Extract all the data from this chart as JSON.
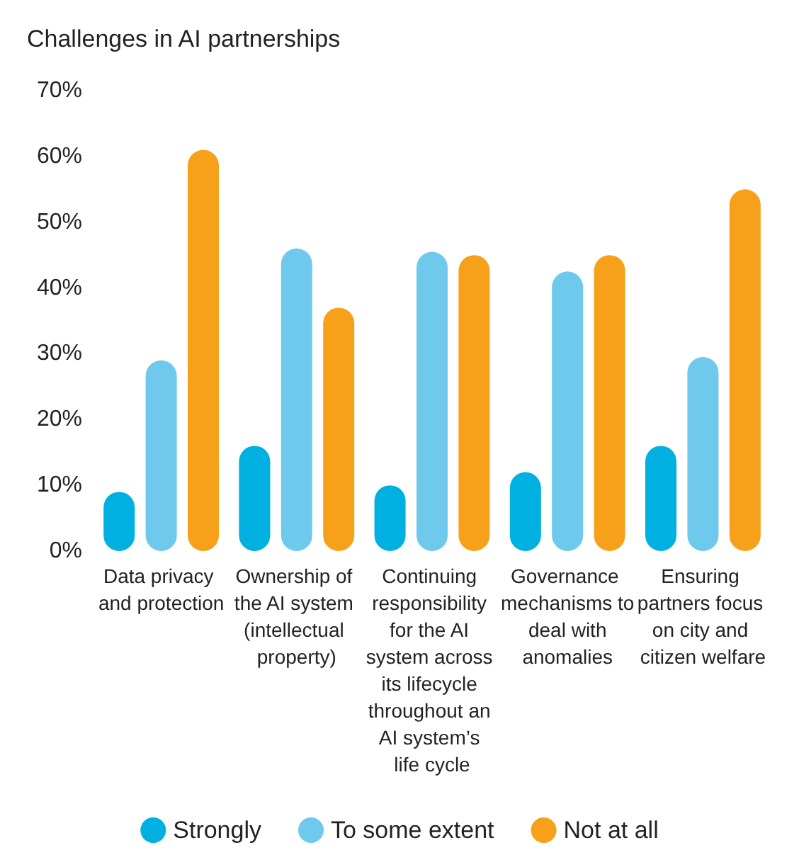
{
  "chart_data": {
    "type": "bar",
    "title": "Challenges in AI partnerships",
    "categories": [
      "Data privacy and protection",
      "Ownership of the AI system (intellectual property)",
      "Continuing responsibility for the AI system across its lifecycle throughout an AI system’s life cycle",
      "Governance mechanisms to deal with anomalies",
      "Ensuring partners focus on city and citizen welfare"
    ],
    "series": [
      {
        "name": "Strongly",
        "color": "#00b0e0",
        "values": [
          9,
          16,
          10,
          12,
          16
        ]
      },
      {
        "name": "To some extent",
        "color": "#6ec9ec",
        "values": [
          29,
          46,
          45.5,
          42.5,
          29.5
        ]
      },
      {
        "name": "Not at all",
        "color": "#f7a11a",
        "values": [
          61,
          37,
          45,
          45,
          55
        ]
      }
    ],
    "ylim": [
      0,
      70
    ],
    "yticks": [
      {
        "value": 0,
        "label": "0%"
      },
      {
        "value": 10,
        "label": "10%"
      },
      {
        "value": 20,
        "label": "20%"
      },
      {
        "value": 30,
        "label": "30%"
      },
      {
        "value": 40,
        "label": "40%"
      },
      {
        "value": 50,
        "label": "50%"
      },
      {
        "value": 60,
        "label": "60%"
      },
      {
        "value": 70,
        "label": "70%"
      }
    ],
    "grid": false,
    "legend": "bottom"
  }
}
